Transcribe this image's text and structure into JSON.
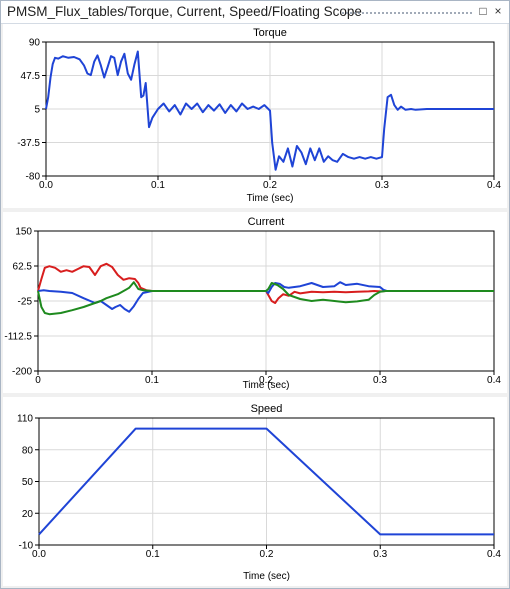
{
  "window": {
    "title": "PMSM_Flux_tables/Torque, Current, Speed/Floating Scope",
    "maximize_glyph": "□",
    "close_glyph": "×"
  },
  "colors": {
    "blue": "#1f44d6",
    "red": "#d81e1e",
    "green": "#1e8a1e",
    "grid": "#d9d9d9"
  },
  "chart_data": [
    {
      "type": "line",
      "title": "Torque",
      "xlabel": "Time (sec)",
      "xlim": [
        0,
        0.4
      ],
      "ylim": [
        -80,
        90
      ],
      "x_ticks": [
        "0.0",
        "0.1",
        "0.2",
        "0.3",
        "0.4"
      ],
      "y_ticks": [
        "90",
        "47.5",
        "5",
        "-37.5",
        "-80"
      ],
      "grid": true,
      "series": [
        {
          "color": "#1f44d6",
          "x": [
            0,
            0.002,
            0.004,
            0.006,
            0.008,
            0.011,
            0.015,
            0.02,
            0.025,
            0.03,
            0.034,
            0.037,
            0.04,
            0.043,
            0.046,
            0.049,
            0.052,
            0.055,
            0.058,
            0.061,
            0.064,
            0.067,
            0.07,
            0.073,
            0.076,
            0.079,
            0.082,
            0.085,
            0.087,
            0.089,
            0.092,
            0.095,
            0.1,
            0.105,
            0.11,
            0.115,
            0.12,
            0.125,
            0.13,
            0.135,
            0.14,
            0.145,
            0.15,
            0.155,
            0.16,
            0.165,
            0.17,
            0.175,
            0.18,
            0.185,
            0.19,
            0.195,
            0.2,
            0.202,
            0.205,
            0.208,
            0.212,
            0.216,
            0.22,
            0.224,
            0.228,
            0.232,
            0.236,
            0.24,
            0.244,
            0.248,
            0.252,
            0.256,
            0.26,
            0.265,
            0.27,
            0.275,
            0.28,
            0.285,
            0.29,
            0.295,
            0.3,
            0.302,
            0.305,
            0.308,
            0.311,
            0.314,
            0.317,
            0.321,
            0.326,
            0.33,
            0.34,
            0.35,
            0.4
          ],
          "values": [
            5,
            20,
            45,
            62,
            70,
            69,
            72,
            70,
            71,
            68,
            60,
            50,
            48,
            65,
            73,
            60,
            45,
            58,
            72,
            70,
            48,
            65,
            75,
            50,
            42,
            62,
            78,
            20,
            22,
            38,
            -18,
            -6,
            5,
            12,
            2,
            10,
            -2,
            12,
            5,
            12,
            1,
            10,
            3,
            11,
            0,
            10,
            2,
            12,
            5,
            8,
            5,
            10,
            3,
            -38,
            -72,
            -55,
            -62,
            -45,
            -68,
            -42,
            -50,
            -65,
            -45,
            -60,
            -45,
            -62,
            -55,
            -60,
            -62,
            -52,
            -56,
            -58,
            -56,
            -58,
            -56,
            -58,
            -56,
            -20,
            20,
            23,
            10,
            4,
            8,
            4,
            5,
            4,
            5,
            5,
            5
          ]
        }
      ]
    },
    {
      "type": "line",
      "title": "Current",
      "xlabel": "Time (sec)",
      "xlim": [
        0,
        0.4
      ],
      "ylim": [
        -200,
        150
      ],
      "x_ticks": [
        "0",
        "0.1",
        "0.2",
        "0.3",
        "0.4"
      ],
      "y_ticks": [
        "150",
        "62.5",
        "-25",
        "-112.5",
        "-200"
      ],
      "grid": true,
      "series": [
        {
          "color": "#d81e1e",
          "x": [
            0,
            0.003,
            0.006,
            0.01,
            0.015,
            0.02,
            0.025,
            0.03,
            0.035,
            0.04,
            0.045,
            0.05,
            0.055,
            0.06,
            0.065,
            0.07,
            0.075,
            0.08,
            0.085,
            0.088,
            0.09,
            0.095,
            0.1,
            0.2,
            0.202,
            0.205,
            0.208,
            0.211,
            0.215,
            0.22,
            0.225,
            0.23,
            0.24,
            0.25,
            0.26,
            0.27,
            0.28,
            0.29,
            0.295,
            0.3,
            0.305,
            0.31,
            0.4
          ],
          "values": [
            0,
            30,
            58,
            62,
            58,
            48,
            52,
            48,
            55,
            62,
            60,
            40,
            62,
            68,
            60,
            40,
            28,
            32,
            30,
            20,
            8,
            2,
            0,
            0,
            -10,
            -25,
            -30,
            -18,
            -8,
            -12,
            -2,
            -6,
            -2,
            -3,
            -2,
            -3,
            -2,
            -1,
            0,
            -1,
            0,
            0,
            0
          ]
        },
        {
          "color": "#1f44d6",
          "x": [
            0,
            0.005,
            0.01,
            0.02,
            0.03,
            0.04,
            0.05,
            0.055,
            0.06,
            0.065,
            0.068,
            0.072,
            0.076,
            0.08,
            0.084,
            0.088,
            0.092,
            0.1,
            0.2,
            0.202,
            0.205,
            0.208,
            0.212,
            0.216,
            0.22,
            0.23,
            0.24,
            0.25,
            0.26,
            0.265,
            0.27,
            0.28,
            0.29,
            0.3,
            0.303,
            0.306,
            0.31,
            0.4
          ],
          "values": [
            0,
            2,
            0,
            -2,
            -5,
            -18,
            -30,
            -25,
            -35,
            -45,
            -40,
            -35,
            -45,
            -52,
            -38,
            -20,
            -5,
            0,
            0,
            -5,
            10,
            20,
            18,
            10,
            8,
            12,
            20,
            10,
            12,
            22,
            15,
            18,
            12,
            10,
            3,
            0,
            0,
            0
          ]
        },
        {
          "color": "#1e8a1e",
          "x": [
            0,
            0.003,
            0.006,
            0.01,
            0.02,
            0.03,
            0.04,
            0.05,
            0.055,
            0.06,
            0.07,
            0.08,
            0.084,
            0.088,
            0.092,
            0.1,
            0.2,
            0.202,
            0.205,
            0.21,
            0.215,
            0.22,
            0.23,
            0.24,
            0.25,
            0.26,
            0.27,
            0.28,
            0.29,
            0.295,
            0.3,
            0.305,
            0.31,
            0.4
          ],
          "values": [
            0,
            -40,
            -55,
            -58,
            -55,
            -48,
            -40,
            -30,
            -25,
            -18,
            -8,
            8,
            22,
            5,
            2,
            0,
            0,
            5,
            20,
            15,
            5,
            -10,
            -20,
            -25,
            -22,
            -25,
            -28,
            -26,
            -22,
            -10,
            -2,
            0,
            0,
            0
          ]
        }
      ]
    },
    {
      "type": "line",
      "title": "Speed",
      "xlabel": "Time (sec)",
      "xlim": [
        0,
        0.4
      ],
      "ylim": [
        -10,
        110
      ],
      "x_ticks": [
        "0.0",
        "0.1",
        "0.2",
        "0.3",
        "0.4"
      ],
      "y_ticks": [
        "110",
        "80",
        "50",
        "20",
        "-10"
      ],
      "grid": true,
      "series": [
        {
          "color": "#1f44d6",
          "x": [
            0,
            0.085,
            0.2,
            0.3,
            0.4
          ],
          "values": [
            0,
            100,
            100,
            0,
            0
          ]
        }
      ]
    }
  ]
}
